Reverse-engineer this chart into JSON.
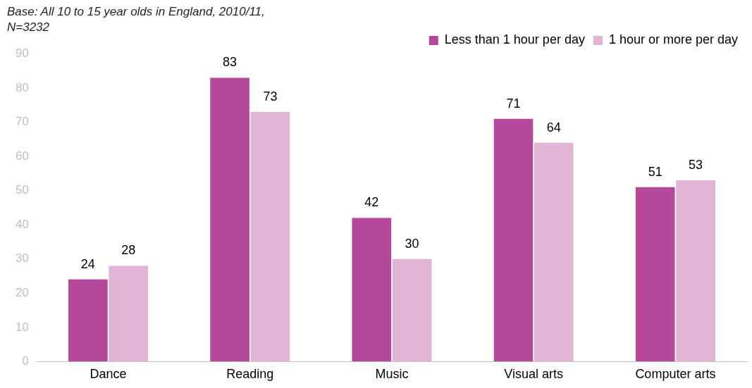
{
  "chart_data": {
    "type": "bar",
    "annotations": [
      "Base: All 10 to 15 year olds in England, 2010/11, N=3232"
    ],
    "categories": [
      "Dance",
      "Reading",
      "Music",
      "Visual arts",
      "Computer arts"
    ],
    "series": [
      {
        "name": "Less than 1 hour per day",
        "color": "#b5489a",
        "values": [
          24,
          83,
          42,
          71,
          51
        ]
      },
      {
        "name": "1 hour or more per day",
        "color": "#e2b4d6",
        "values": [
          28,
          73,
          30,
          64,
          53
        ]
      }
    ],
    "ylim": [
      0,
      90
    ],
    "yticks": [
      0,
      10,
      20,
      30,
      40,
      50,
      60,
      70,
      80,
      90
    ],
    "grid": false,
    "legend": "top right",
    "data_labels": true
  }
}
